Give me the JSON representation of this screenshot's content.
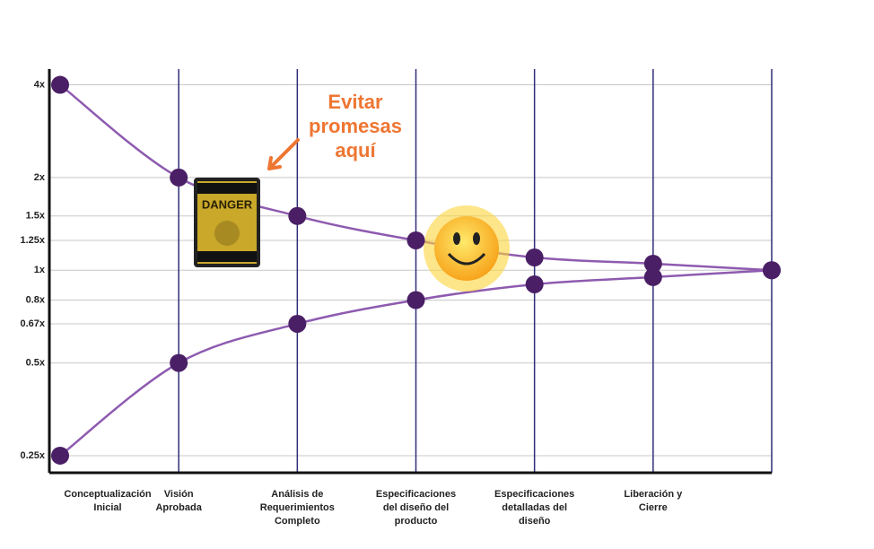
{
  "chart_data": {
    "type": "line",
    "log_y": true,
    "categories": [
      [
        "Conceptualización",
        "Inicial"
      ],
      [
        "Visión",
        "Aprobada"
      ],
      [
        "Análisis de",
        "Requerimientos",
        "Completo"
      ],
      [
        "Especificaciones",
        "del diseño del",
        "producto"
      ],
      [
        "Especificaciones",
        "detalladas del",
        "diseño"
      ],
      [
        "Liberación y",
        "Cierre"
      ],
      null
    ],
    "series": [
      {
        "color": "#8e5bb0",
        "marker_color": "#4a1f66",
        "values": [
          4,
          2,
          1.5,
          1.25,
          1.1,
          1.05,
          1
        ]
      },
      {
        "color": "#8e5bb0",
        "marker_color": "#4a1f66",
        "values": [
          0.25,
          0.5,
          0.67,
          0.8,
          0.9,
          0.95,
          1
        ]
      }
    ],
    "ylim": [
      0.22,
      4.5
    ],
    "yticks": [
      {
        "value": 0.25,
        "label": "0.25x"
      },
      {
        "value": 0.5,
        "label": "0.5x"
      },
      {
        "value": 0.67,
        "label": "0.67x"
      },
      {
        "value": 0.8,
        "label": "0.8x"
      },
      {
        "value": 1,
        "label": "1x"
      },
      {
        "value": 1.25,
        "label": "1.25x"
      },
      {
        "value": 1.5,
        "label": "1.5x"
      },
      {
        "value": 2,
        "label": "2x"
      },
      {
        "value": 4,
        "label": "4x"
      }
    ],
    "grid": true,
    "annotation": [
      "Evitar",
      "promesas",
      "aquí"
    ],
    "sign_text": "DANGER"
  }
}
